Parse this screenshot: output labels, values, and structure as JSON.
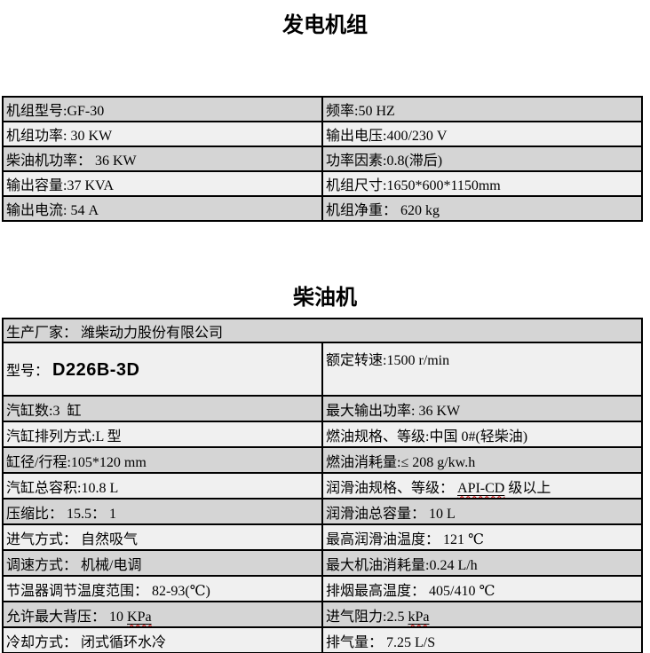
{
  "colors": {
    "row_dark": "#d5d5d5",
    "row_light": "#f0f0f0",
    "table_border": "#000000",
    "spellcheck_squiggle": "#dd0000"
  },
  "generator": {
    "title": "发电机组",
    "rows": [
      {
        "left": "机组型号:GF-30",
        "right": "频率:50 HZ"
      },
      {
        "left": "机组功率: 30 KW",
        "right": "输出电压:400/230 V"
      },
      {
        "left": "柴油机功率： 36 KW",
        "right": "功率因素:0.8(滞后)"
      },
      {
        "left": "输出容量:37 KVA",
        "right": "机组尺寸:1650*600*1150mm"
      },
      {
        "left": "输出电流: 54 A",
        "right": "机组净重： 620 kg"
      }
    ]
  },
  "diesel": {
    "title": "柴油机",
    "manufacturer_row": "生产厂家： 潍柴动力股份有限公司",
    "model_row": {
      "label": "型号： ",
      "model": "D226B-3D",
      "right": "额定转速:1500 r/min"
    },
    "rows": [
      {
        "left": "汽缸数:3  缸",
        "right": "最大输出功率: 36 KW"
      },
      {
        "left": "汽缸排列方式:L 型",
        "right": "燃油规格、等级:中国 0#(轻柴油)"
      },
      {
        "left": "缸径/行程:105*120 mm",
        "right": "燃油消耗量:≤ 208 g/kw.h"
      },
      {
        "left": "汽缸总容积:10.8 L",
        "right_pre": "润滑油规格、等级： ",
        "right_marked": "API-CD",
        "right_post": " 级以上"
      },
      {
        "left": "压缩比： 15.5： 1",
        "right": "润滑油总容量： 10 L"
      },
      {
        "left": "进气方式： 自然吸气",
        "right": "最高润滑油温度： 121 ℃"
      },
      {
        "left": "调速方式： 机械/电调",
        "right": "最大机油消耗量:0.24 L/h"
      },
      {
        "left": "节温器调节温度范围： 82-93(℃)",
        "right": "排烟最高温度： 405/410 ℃"
      },
      {
        "left_pre": "允许最大背压： 10 ",
        "left_marked": "KPa",
        "right_pre": "进气阻力:2.5 ",
        "right_marked": "kPa"
      },
      {
        "left": "冷却方式： 闭式循环水冷",
        "right": "排气量： 7.25 L/S"
      }
    ]
  }
}
